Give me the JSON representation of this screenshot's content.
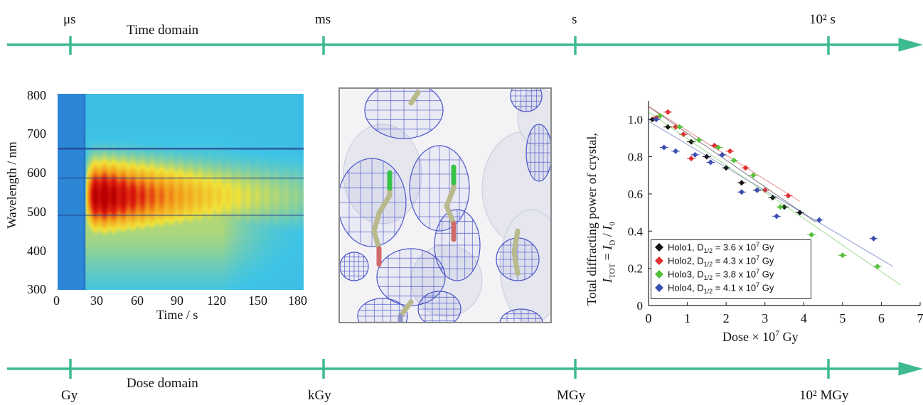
{
  "time_axis": {
    "title": "Time domain",
    "ticks": [
      "μs",
      "ms",
      "s",
      "10²  s"
    ],
    "color": "#3dba8f"
  },
  "dose_axis": {
    "title": "Dose domain",
    "ticks": [
      "Gy",
      "kGy",
      "MGy",
      "10²  MGy"
    ],
    "color": "#3dba8f"
  },
  "panel_heatmap": {
    "xlabel": "Time / s",
    "ylabel": "Wavelength / nm",
    "x_ticks": [
      "0",
      "30",
      "60",
      "90",
      "120",
      "150",
      "180"
    ],
    "y_ticks": [
      "800",
      "700",
      "600",
      "500",
      "400",
      "300"
    ]
  },
  "panel_density": {
    "mesh_color": "#4a55c8",
    "atom_colors": {
      "carbon": "#b8b98c",
      "green": "#39c24a",
      "oxygen": "#d06a6a",
      "nitrogen": "#8f95c9"
    }
  },
  "chart_data": [
    {
      "type": "heatmap",
      "xlabel": "Time / s",
      "ylabel": "Wavelength / nm",
      "xlim": [
        0,
        180
      ],
      "ylim": [
        300,
        800
      ],
      "x_ticks": [
        0,
        30,
        60,
        90,
        120,
        150,
        180
      ],
      "y_ticks": [
        300,
        400,
        500,
        600,
        700,
        800
      ],
      "peak_wavelength": 540,
      "peak_time": 35,
      "onset_time": 20,
      "colormap": [
        "#2a7fd4",
        "#3ec4e6",
        "#f0e23a",
        "#f39a1a",
        "#e02010",
        "#b80000"
      ]
    },
    {
      "type": "scatter",
      "xlabel": "Dose × 10⁷ Gy",
      "ylabel_line1": "Total diffracting power of crystal,",
      "ylabel_line2": "I_TOT = I_D / I_0",
      "xlim": [
        0,
        7
      ],
      "ylim": [
        0,
        1.1
      ],
      "x_ticks": [
        "0",
        "1",
        "2",
        "3",
        "4",
        "5",
        "6",
        "7"
      ],
      "y_ticks": [
        "0",
        "0.2",
        "0.4",
        "0.6",
        "0.8",
        "1.0"
      ],
      "series": [
        {
          "name": "Holo1, D1/2 = 3.6 x 10⁷ Gy",
          "color": "#111111",
          "x": [
            0.1,
            0.5,
            1.1,
            1.5,
            2.0,
            2.4,
            2.8,
            3.2,
            3.5,
            3.9
          ],
          "y": [
            1.0,
            0.96,
            0.88,
            0.8,
            0.74,
            0.66,
            0.62,
            0.58,
            0.53,
            0.5
          ],
          "fit": [
            [
              0,
              1.07
            ],
            [
              4.3,
              0.45
            ]
          ]
        },
        {
          "name": "Holo2, D1/2 = 4.3 x 10⁷ Gy",
          "color": "#e03030",
          "x": [
            0.2,
            0.5,
            0.7,
            0.9,
            1.1,
            1.3,
            1.7,
            2.1,
            2.5,
            3.0,
            3.6
          ],
          "y": [
            1.01,
            1.04,
            0.96,
            0.92,
            0.79,
            0.89,
            0.86,
            0.83,
            0.74,
            0.62,
            0.59
          ],
          "fit": [
            [
              0,
              1.07
            ],
            [
              3.9,
              0.56
            ]
          ]
        },
        {
          "name": "Holo3, D1/2 = 3.8 x 10⁷ Gy",
          "color": "#56c03a",
          "x": [
            0.3,
            0.8,
            1.3,
            1.8,
            2.2,
            2.7,
            3.4,
            4.2,
            5.0,
            5.9
          ],
          "y": [
            1.02,
            0.96,
            0.89,
            0.85,
            0.78,
            0.7,
            0.53,
            0.38,
            0.27,
            0.21
          ],
          "fit": [
            [
              0,
              1.04
            ],
            [
              6.5,
              0.11
            ]
          ]
        },
        {
          "name": "Holo4, D1/2 = 4.1 x 10⁷ Gy",
          "color": "#3a4fb0",
          "x": [
            0.2,
            0.4,
            0.7,
            1.2,
            1.6,
            1.9,
            2.4,
            2.8,
            3.3,
            4.4,
            5.8
          ],
          "y": [
            1.0,
            0.85,
            0.83,
            0.81,
            0.77,
            0.81,
            0.61,
            0.62,
            0.48,
            0.46,
            0.36
          ],
          "fit": [
            [
              0,
              0.99
            ],
            [
              6.3,
              0.21
            ]
          ]
        }
      ]
    }
  ]
}
